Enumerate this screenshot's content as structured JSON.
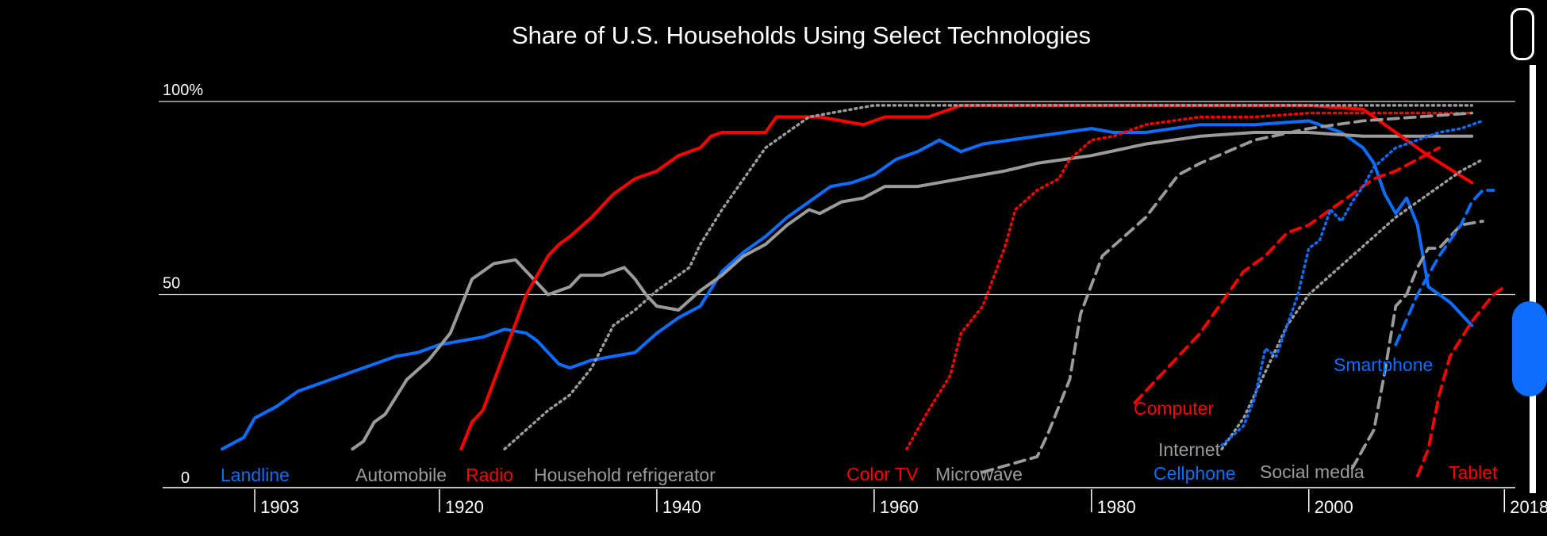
{
  "colors": {
    "background": "#000000",
    "red": "#ff0000",
    "blue": "#0d6efd",
    "gray": "#9b9b9b",
    "grid": "#d9d9d9",
    "text": "#ffffff"
  },
  "chart_data": {
    "type": "line",
    "title": "Share of U.S. Households Using Select Technologies",
    "xlabel": "",
    "ylabel": "",
    "xlim": [
      1900,
      2019
    ],
    "ylim": [
      0,
      100
    ],
    "x_ticks": [
      1903,
      1920,
      1940,
      1960,
      1980,
      2000,
      2018
    ],
    "x_tick_labels": [
      "1903",
      "1920",
      "1940",
      "1960",
      "1980",
      "2000",
      "2018"
    ],
    "y_ticks": [
      0,
      50,
      100
    ],
    "y_tick_labels": [
      "0",
      "50",
      "100%"
    ],
    "grid": true,
    "series": [
      {
        "name": "Landline",
        "color": "blue",
        "style": "solid",
        "points": [
          [
            1900,
            10
          ],
          [
            1902,
            13
          ],
          [
            1903,
            18
          ],
          [
            1905,
            21
          ],
          [
            1907,
            25
          ],
          [
            1910,
            28
          ],
          [
            1913,
            31
          ],
          [
            1916,
            34
          ],
          [
            1918,
            35
          ],
          [
            1920,
            37
          ],
          [
            1922,
            38
          ],
          [
            1924,
            39
          ],
          [
            1926,
            41
          ],
          [
            1928,
            40
          ],
          [
            1929,
            38
          ],
          [
            1931,
            32
          ],
          [
            1932,
            31
          ],
          [
            1934,
            33
          ],
          [
            1936,
            34
          ],
          [
            1938,
            35
          ],
          [
            1940,
            40
          ],
          [
            1942,
            44
          ],
          [
            1944,
            47
          ],
          [
            1946,
            56
          ],
          [
            1948,
            61
          ],
          [
            1950,
            65
          ],
          [
            1952,
            70
          ],
          [
            1954,
            74
          ],
          [
            1956,
            78
          ],
          [
            1958,
            79
          ],
          [
            1960,
            81
          ],
          [
            1962,
            85
          ],
          [
            1964,
            87
          ],
          [
            1966,
            90
          ],
          [
            1968,
            87
          ],
          [
            1970,
            89
          ],
          [
            1975,
            91
          ],
          [
            1980,
            93
          ],
          [
            1982,
            92
          ],
          [
            1985,
            92
          ],
          [
            1990,
            94
          ],
          [
            1995,
            94
          ],
          [
            2000,
            95
          ],
          [
            2003,
            92
          ],
          [
            2005,
            88
          ],
          [
            2006,
            84
          ],
          [
            2007,
            76
          ],
          [
            2008,
            71
          ],
          [
            2009,
            75
          ],
          [
            2010,
            68
          ],
          [
            2011,
            52
          ],
          [
            2013,
            48
          ],
          [
            2015,
            42
          ]
        ]
      },
      {
        "name": "Automobile",
        "color": "gray",
        "style": "solid",
        "points": [
          [
            1912,
            10
          ],
          [
            1913,
            12
          ],
          [
            1914,
            17
          ],
          [
            1915,
            19
          ],
          [
            1917,
            28
          ],
          [
            1919,
            33
          ],
          [
            1921,
            40
          ],
          [
            1923,
            54
          ],
          [
            1925,
            58
          ],
          [
            1927,
            59
          ],
          [
            1929,
            53
          ],
          [
            1930,
            50
          ],
          [
            1932,
            52
          ],
          [
            1933,
            55
          ],
          [
            1935,
            55
          ],
          [
            1937,
            57
          ],
          [
            1938,
            54
          ],
          [
            1939,
            50
          ],
          [
            1940,
            47
          ],
          [
            1942,
            46
          ],
          [
            1944,
            51
          ],
          [
            1946,
            55
          ],
          [
            1948,
            60
          ],
          [
            1950,
            63
          ],
          [
            1952,
            68
          ],
          [
            1954,
            72
          ],
          [
            1955,
            71
          ],
          [
            1957,
            74
          ],
          [
            1959,
            75
          ],
          [
            1961,
            78
          ],
          [
            1964,
            78
          ],
          [
            1966,
            79
          ],
          [
            1968,
            80
          ],
          [
            1970,
            81
          ],
          [
            1972,
            82
          ],
          [
            1975,
            84
          ],
          [
            1980,
            86
          ],
          [
            1985,
            89
          ],
          [
            1990,
            91
          ],
          [
            1995,
            92
          ],
          [
            2000,
            92
          ],
          [
            2005,
            91
          ],
          [
            2010,
            91
          ],
          [
            2015,
            91
          ]
        ]
      },
      {
        "name": "Radio",
        "color": "red",
        "style": "solid",
        "points": [
          [
            1922,
            10
          ],
          [
            1923,
            17
          ],
          [
            1924,
            20
          ],
          [
            1926,
            35
          ],
          [
            1928,
            50
          ],
          [
            1930,
            60
          ],
          [
            1931,
            63
          ],
          [
            1932,
            65
          ],
          [
            1934,
            70
          ],
          [
            1935,
            73
          ],
          [
            1936,
            76
          ],
          [
            1937,
            78
          ],
          [
            1938,
            80
          ],
          [
            1940,
            82
          ],
          [
            1941,
            84
          ],
          [
            1942,
            86
          ],
          [
            1944,
            88
          ],
          [
            1945,
            91
          ],
          [
            1946,
            92
          ],
          [
            1948,
            92
          ],
          [
            1950,
            92
          ],
          [
            1951,
            96
          ],
          [
            1953,
            96
          ],
          [
            1955,
            96
          ],
          [
            1957,
            95
          ],
          [
            1959,
            94
          ],
          [
            1961,
            96
          ],
          [
            1963,
            96
          ],
          [
            1965,
            96
          ],
          [
            1966,
            97
          ],
          [
            1968,
            99
          ],
          [
            1980,
            99
          ],
          [
            1990,
            99
          ],
          [
            2000,
            99
          ],
          [
            2005,
            98
          ],
          [
            2008,
            92
          ],
          [
            2011,
            86
          ],
          [
            2015,
            79
          ]
        ]
      },
      {
        "name": "Household refrigerator",
        "color": "gray",
        "style": "dotted",
        "points": [
          [
            1926,
            10
          ],
          [
            1930,
            20
          ],
          [
            1932,
            24
          ],
          [
            1934,
            31
          ],
          [
            1936,
            42
          ],
          [
            1938,
            46
          ],
          [
            1940,
            51
          ],
          [
            1942,
            55
          ],
          [
            1943,
            57
          ],
          [
            1944,
            63
          ],
          [
            1946,
            72
          ],
          [
            1948,
            80
          ],
          [
            1950,
            88
          ],
          [
            1952,
            92
          ],
          [
            1954,
            96
          ],
          [
            1958,
            98
          ],
          [
            1960,
            99
          ],
          [
            1970,
            99
          ],
          [
            1980,
            99
          ],
          [
            1990,
            99
          ],
          [
            2000,
            99
          ],
          [
            2010,
            99
          ],
          [
            2015,
            99
          ]
        ]
      },
      {
        "name": "Color TV",
        "color": "red",
        "style": "dotted",
        "points": [
          [
            1963,
            10
          ],
          [
            1965,
            20
          ],
          [
            1967,
            29
          ],
          [
            1968,
            40
          ],
          [
            1970,
            47
          ],
          [
            1972,
            62
          ],
          [
            1973,
            72
          ],
          [
            1975,
            77
          ],
          [
            1977,
            80
          ],
          [
            1978,
            85
          ],
          [
            1980,
            90
          ],
          [
            1982,
            91
          ],
          [
            1985,
            94
          ],
          [
            1990,
            96
          ],
          [
            1995,
            96
          ],
          [
            2000,
            97
          ],
          [
            2005,
            97
          ],
          [
            2010,
            97
          ],
          [
            2015,
            97
          ]
        ]
      },
      {
        "name": "Microwave",
        "color": "gray",
        "style": "dashed",
        "points": [
          [
            1970,
            4
          ],
          [
            1975,
            8
          ],
          [
            1976,
            14
          ],
          [
            1978,
            28
          ],
          [
            1979,
            45
          ],
          [
            1981,
            60
          ],
          [
            1985,
            70
          ],
          [
            1988,
            81
          ],
          [
            1990,
            84
          ],
          [
            1995,
            90
          ],
          [
            2000,
            93
          ],
          [
            2005,
            95
          ],
          [
            2010,
            96
          ],
          [
            2015,
            97
          ]
        ]
      },
      {
        "name": "Computer",
        "color": "red",
        "style": "dashed",
        "points": [
          [
            1984,
            22
          ],
          [
            1986,
            28
          ],
          [
            1988,
            34
          ],
          [
            1990,
            40
          ],
          [
            1992,
            48
          ],
          [
            1994,
            56
          ],
          [
            1996,
            60
          ],
          [
            1998,
            66
          ],
          [
            2000,
            68
          ],
          [
            2002,
            72
          ],
          [
            2004,
            76
          ],
          [
            2006,
            80
          ],
          [
            2008,
            82
          ],
          [
            2010,
            85
          ],
          [
            2012,
            88
          ]
        ]
      },
      {
        "name": "Internet",
        "color": "gray",
        "style": "dotted",
        "points": [
          [
            1992,
            10
          ],
          [
            1994,
            18
          ],
          [
            1996,
            30
          ],
          [
            1998,
            42
          ],
          [
            2000,
            50
          ],
          [
            2002,
            55
          ],
          [
            2004,
            60
          ],
          [
            2006,
            65
          ],
          [
            2008,
            70
          ],
          [
            2010,
            74
          ],
          [
            2012,
            78
          ],
          [
            2014,
            82
          ],
          [
            2016,
            85
          ]
        ]
      },
      {
        "name": "Cellphone",
        "color": "blue",
        "style": "dotted",
        "points": [
          [
            1992,
            11
          ],
          [
            1994,
            16
          ],
          [
            1995,
            23
          ],
          [
            1996,
            36
          ],
          [
            1997,
            34
          ],
          [
            1998,
            42
          ],
          [
            1999,
            50
          ],
          [
            2000,
            62
          ],
          [
            2001,
            64
          ],
          [
            2002,
            72
          ],
          [
            2003,
            69
          ],
          [
            2004,
            74
          ],
          [
            2005,
            78
          ],
          [
            2006,
            83
          ],
          [
            2008,
            88
          ],
          [
            2010,
            90
          ],
          [
            2012,
            92
          ],
          [
            2014,
            93
          ],
          [
            2016,
            95
          ]
        ]
      },
      {
        "name": "Social media",
        "color": "gray",
        "style": "dashed",
        "points": [
          [
            2004,
            5
          ],
          [
            2006,
            15
          ],
          [
            2007,
            30
          ],
          [
            2008,
            47
          ],
          [
            2009,
            50
          ],
          [
            2010,
            57
          ],
          [
            2011,
            62
          ],
          [
            2012,
            62
          ],
          [
            2013,
            65
          ],
          [
            2014,
            68
          ],
          [
            2016,
            69
          ]
        ]
      },
      {
        "name": "Smartphone",
        "color": "blue",
        "style": "dashed",
        "points": [
          [
            2008,
            37
          ],
          [
            2010,
            50
          ],
          [
            2012,
            60
          ],
          [
            2014,
            68
          ],
          [
            2015,
            74
          ],
          [
            2016,
            77
          ],
          [
            2017,
            77
          ]
        ]
      },
      {
        "name": "Tablet",
        "color": "red",
        "style": "dashed",
        "points": [
          [
            2010,
            3
          ],
          [
            2011,
            10
          ],
          [
            2012,
            24
          ],
          [
            2013,
            34
          ],
          [
            2015,
            43
          ],
          [
            2017,
            50
          ],
          [
            2018,
            52
          ]
        ]
      }
    ]
  }
}
